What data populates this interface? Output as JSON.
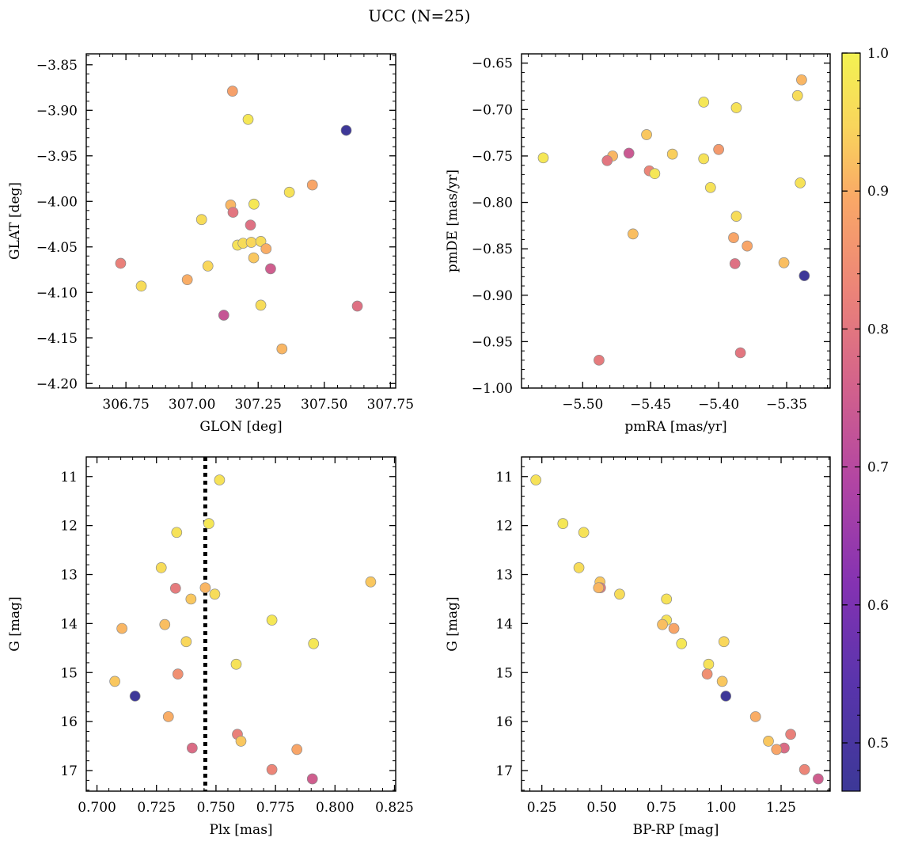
{
  "figure": {
    "title": "UCC (N=25)"
  },
  "colorbar": {
    "colormap": "plasma",
    "range": [
      0.465,
      1.0
    ],
    "ticks": [
      0.5,
      0.6,
      0.7,
      0.8,
      0.9,
      1.0
    ],
    "tick_labels": [
      "0.5",
      "0.6",
      "0.7",
      "0.8",
      "0.9",
      "1.0"
    ]
  },
  "chart_data": [
    {
      "id": "glon-glat",
      "type": "scatter",
      "xlabel": "GLON [deg]",
      "ylabel": "GLAT [deg]",
      "xlim": [
        306.6,
        307.77
      ],
      "ylim": [
        -4.205,
        -3.838
      ],
      "xticks": [
        306.75,
        307.0,
        307.25,
        307.5,
        307.75
      ],
      "xtick_labels": [
        "306.75",
        "307.00",
        "307.25",
        "307.50",
        "307.75"
      ],
      "yticks": [
        -4.2,
        -4.15,
        -4.1,
        -4.05,
        -4.0,
        -3.95,
        -3.9,
        -3.85
      ],
      "ytick_labels": [
        "−4.20",
        "−4.15",
        "−4.10",
        "−4.05",
        "−4.00",
        "−3.95",
        "−3.90",
        "−3.85"
      ],
      "points": [
        {
          "x": 307.153,
          "y": -3.879,
          "c": 0.88
        },
        {
          "x": 307.212,
          "y": -3.91,
          "c": 0.98
        },
        {
          "x": 307.583,
          "y": -3.922,
          "c": 0.47
        },
        {
          "x": 307.455,
          "y": -3.982,
          "c": 0.89
        },
        {
          "x": 307.368,
          "y": -3.99,
          "c": 0.97
        },
        {
          "x": 307.146,
          "y": -4.004,
          "c": 0.91
        },
        {
          "x": 307.234,
          "y": -4.003,
          "c": 0.98
        },
        {
          "x": 307.155,
          "y": -4.012,
          "c": 0.8
        },
        {
          "x": 307.036,
          "y": -4.02,
          "c": 0.96
        },
        {
          "x": 307.221,
          "y": -4.026,
          "c": 0.79
        },
        {
          "x": 307.172,
          "y": -4.048,
          "c": 0.97
        },
        {
          "x": 307.193,
          "y": -4.046,
          "c": 0.96
        },
        {
          "x": 307.224,
          "y": -4.045,
          "c": 0.95
        },
        {
          "x": 307.26,
          "y": -4.044,
          "c": 0.96
        },
        {
          "x": 307.28,
          "y": -4.052,
          "c": 0.9
        },
        {
          "x": 307.233,
          "y": -4.062,
          "c": 0.93
        },
        {
          "x": 306.73,
          "y": -4.068,
          "c": 0.82
        },
        {
          "x": 307.06,
          "y": -4.071,
          "c": 0.95
        },
        {
          "x": 307.297,
          "y": -4.074,
          "c": 0.75
        },
        {
          "x": 306.808,
          "y": -4.093,
          "c": 0.96
        },
        {
          "x": 306.982,
          "y": -4.086,
          "c": 0.9
        },
        {
          "x": 307.26,
          "y": -4.114,
          "c": 0.96
        },
        {
          "x": 307.625,
          "y": -4.115,
          "c": 0.79
        },
        {
          "x": 307.12,
          "y": -4.125,
          "c": 0.73
        },
        {
          "x": 307.34,
          "y": -4.162,
          "c": 0.91
        }
      ]
    },
    {
      "id": "pm",
      "type": "scatter",
      "xlabel": "pmRA [mas/yr]",
      "ylabel": "pmDE [mas/yr]",
      "xlim": [
        -5.545,
        -5.318
      ],
      "ylim": [
        -1.0,
        -0.64
      ],
      "xticks": [
        -5.5,
        -5.45,
        -5.4,
        -5.35
      ],
      "xtick_labels": [
        "−5.50",
        "−5.45",
        "−5.40",
        "−5.35"
      ],
      "yticks": [
        -1.0,
        -0.95,
        -0.9,
        -0.85,
        -0.8,
        -0.75,
        -0.7,
        -0.65
      ],
      "ytick_labels": [
        "−1.00",
        "−0.95",
        "−0.90",
        "−0.85",
        "−0.80",
        "−0.75",
        "−0.70",
        "−0.65"
      ],
      "points": [
        {
          "x": -5.339,
          "y": -0.668,
          "c": 0.91
        },
        {
          "x": -5.342,
          "y": -0.685,
          "c": 0.96
        },
        {
          "x": -5.411,
          "y": -0.692,
          "c": 0.98
        },
        {
          "x": -5.387,
          "y": -0.698,
          "c": 0.97
        },
        {
          "x": -5.453,
          "y": -0.727,
          "c": 0.93
        },
        {
          "x": -5.4,
          "y": -0.743,
          "c": 0.87
        },
        {
          "x": -5.466,
          "y": -0.747,
          "c": 0.74
        },
        {
          "x": -5.434,
          "y": -0.748,
          "c": 0.94
        },
        {
          "x": -5.529,
          "y": -0.752,
          "c": 0.98
        },
        {
          "x": -5.411,
          "y": -0.753,
          "c": 0.97
        },
        {
          "x": -5.478,
          "y": -0.75,
          "c": 0.91
        },
        {
          "x": -5.482,
          "y": -0.755,
          "c": 0.8
        },
        {
          "x": -5.451,
          "y": -0.766,
          "c": 0.83
        },
        {
          "x": -5.447,
          "y": -0.769,
          "c": 0.98
        },
        {
          "x": -5.34,
          "y": -0.779,
          "c": 0.97
        },
        {
          "x": -5.406,
          "y": -0.784,
          "c": 0.97
        },
        {
          "x": -5.387,
          "y": -0.815,
          "c": 0.96
        },
        {
          "x": -5.463,
          "y": -0.834,
          "c": 0.92
        },
        {
          "x": -5.389,
          "y": -0.838,
          "c": 0.89
        },
        {
          "x": -5.379,
          "y": -0.847,
          "c": 0.89
        },
        {
          "x": -5.388,
          "y": -0.866,
          "c": 0.79
        },
        {
          "x": -5.352,
          "y": -0.865,
          "c": 0.92
        },
        {
          "x": -5.337,
          "y": -0.879,
          "c": 0.47
        },
        {
          "x": -5.384,
          "y": -0.962,
          "c": 0.8
        },
        {
          "x": -5.488,
          "y": -0.97,
          "c": 0.81
        }
      ]
    },
    {
      "id": "plx-g",
      "type": "scatter",
      "xlabel": "Plx [mas]",
      "ylabel": "G [mag]",
      "xlim": [
        0.6955,
        0.8255
      ],
      "ylim": [
        17.42,
        10.6
      ],
      "y_inverted": true,
      "xticks": [
        0.7,
        0.725,
        0.75,
        0.775,
        0.8,
        0.825
      ],
      "xtick_labels": [
        "0.700",
        "0.725",
        "0.750",
        "0.775",
        "0.800",
        "0.825"
      ],
      "yticks": [
        11,
        12,
        13,
        14,
        15,
        16,
        17
      ],
      "ytick_labels": [
        "11",
        "12",
        "13",
        "14",
        "15",
        "16",
        "17"
      ],
      "vline": {
        "x": 0.7455,
        "style": "dotted"
      },
      "points": [
        {
          "x": 0.7515,
          "y": 11.07,
          "c": 0.97
        },
        {
          "x": 0.747,
          "y": 11.96,
          "c": 0.98
        },
        {
          "x": 0.7335,
          "y": 12.14,
          "c": 0.97
        },
        {
          "x": 0.727,
          "y": 12.86,
          "c": 0.96
        },
        {
          "x": 0.815,
          "y": 13.15,
          "c": 0.93
        },
        {
          "x": 0.7455,
          "y": 13.27,
          "c": 0.91
        },
        {
          "x": 0.733,
          "y": 13.28,
          "c": 0.81
        },
        {
          "x": 0.7495,
          "y": 13.4,
          "c": 0.96
        },
        {
          "x": 0.7395,
          "y": 13.5,
          "c": 0.93
        },
        {
          "x": 0.7735,
          "y": 13.93,
          "c": 0.98
        },
        {
          "x": 0.7285,
          "y": 14.02,
          "c": 0.92
        },
        {
          "x": 0.7105,
          "y": 14.1,
          "c": 0.91
        },
        {
          "x": 0.7375,
          "y": 14.37,
          "c": 0.95
        },
        {
          "x": 0.791,
          "y": 14.41,
          "c": 0.98
        },
        {
          "x": 0.7585,
          "y": 14.83,
          "c": 0.97
        },
        {
          "x": 0.734,
          "y": 15.03,
          "c": 0.85
        },
        {
          "x": 0.7075,
          "y": 15.18,
          "c": 0.93
        },
        {
          "x": 0.716,
          "y": 15.48,
          "c": 0.47
        },
        {
          "x": 0.73,
          "y": 15.9,
          "c": 0.9
        },
        {
          "x": 0.759,
          "y": 16.26,
          "c": 0.82
        },
        {
          "x": 0.7605,
          "y": 16.4,
          "c": 0.93
        },
        {
          "x": 0.74,
          "y": 16.54,
          "c": 0.78
        },
        {
          "x": 0.784,
          "y": 16.57,
          "c": 0.89
        },
        {
          "x": 0.7735,
          "y": 16.98,
          "c": 0.83
        },
        {
          "x": 0.7905,
          "y": 17.17,
          "c": 0.75
        }
      ]
    },
    {
      "id": "cmd",
      "type": "scatter",
      "xlabel": "BP-RP [mag]",
      "ylabel": "G [mag]",
      "xlim": [
        0.165,
        1.455
      ],
      "ylim": [
        17.42,
        10.6
      ],
      "y_inverted": true,
      "xticks": [
        0.25,
        0.5,
        0.75,
        1.0,
        1.25
      ],
      "xtick_labels": [
        "0.25",
        "0.50",
        "0.75",
        "1.00",
        "1.25"
      ],
      "yticks": [
        11,
        12,
        13,
        14,
        15,
        16,
        17
      ],
      "ytick_labels": [
        "11",
        "12",
        "13",
        "14",
        "15",
        "16",
        "17"
      ],
      "points": [
        {
          "x": 0.225,
          "y": 11.07,
          "c": 0.97
        },
        {
          "x": 0.338,
          "y": 11.96,
          "c": 0.98
        },
        {
          "x": 0.425,
          "y": 12.14,
          "c": 0.97
        },
        {
          "x": 0.405,
          "y": 12.86,
          "c": 0.96
        },
        {
          "x": 0.493,
          "y": 13.15,
          "c": 0.93
        },
        {
          "x": 0.495,
          "y": 13.27,
          "c": 0.81
        },
        {
          "x": 0.487,
          "y": 13.27,
          "c": 0.91
        },
        {
          "x": 0.575,
          "y": 13.4,
          "c": 0.96
        },
        {
          "x": 0.771,
          "y": 13.5,
          "c": 0.97
        },
        {
          "x": 0.771,
          "y": 13.93,
          "c": 0.97
        },
        {
          "x": 0.754,
          "y": 14.02,
          "c": 0.92
        },
        {
          "x": 0.802,
          "y": 14.1,
          "c": 0.89
        },
        {
          "x": 1.011,
          "y": 14.37,
          "c": 0.95
        },
        {
          "x": 0.834,
          "y": 14.41,
          "c": 0.98
        },
        {
          "x": 0.947,
          "y": 14.83,
          "c": 0.97
        },
        {
          "x": 0.941,
          "y": 15.03,
          "c": 0.85
        },
        {
          "x": 1.004,
          "y": 15.18,
          "c": 0.93
        },
        {
          "x": 1.019,
          "y": 15.48,
          "c": 0.47
        },
        {
          "x": 1.143,
          "y": 15.9,
          "c": 0.9
        },
        {
          "x": 1.29,
          "y": 16.26,
          "c": 0.82
        },
        {
          "x": 1.197,
          "y": 16.4,
          "c": 0.93
        },
        {
          "x": 1.263,
          "y": 16.54,
          "c": 0.78
        },
        {
          "x": 1.231,
          "y": 16.57,
          "c": 0.89
        },
        {
          "x": 1.348,
          "y": 16.98,
          "c": 0.83
        },
        {
          "x": 1.405,
          "y": 17.17,
          "c": 0.75
        }
      ]
    }
  ]
}
